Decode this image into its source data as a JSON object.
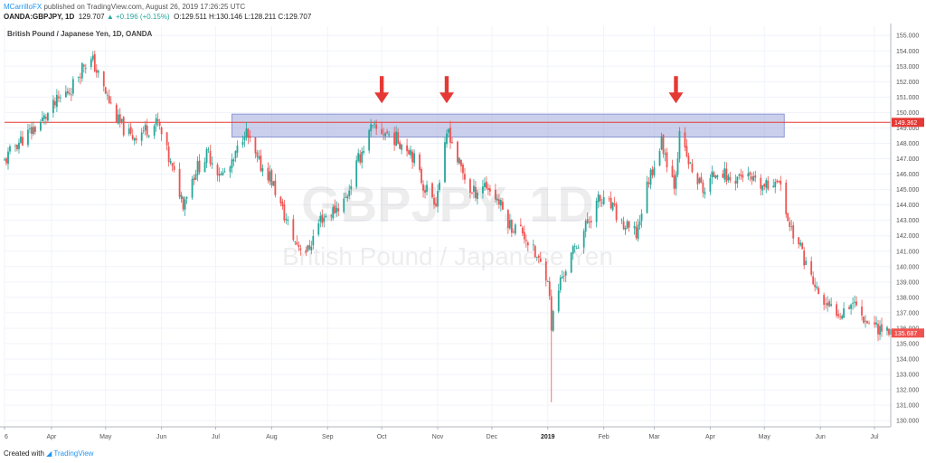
{
  "header": {
    "author": "MCarrilloFX",
    "published": "published on TradingView.com, August 26, 2019 17:26:25 UTC",
    "symbol": "OANDA:GBPJPY, 1D",
    "last": "129.707",
    "change": "+0.196 (+0.15%)",
    "ohlc": "O:129.511 H:130.146 L:128.211 C:129.707"
  },
  "footer": {
    "created_with": "Created with",
    "brand": "TradingView"
  },
  "chart_data": {
    "type": "candlestick",
    "title": "British Pound / Japanese Yen, 1D, OANDA",
    "watermark": "GBPJPY, 1D",
    "watermark_sub": "British Pound / Japanese Yen",
    "ylim": [
      129.6,
      155.6
    ],
    "y_ticks": [
      130,
      131,
      132,
      133,
      134,
      135,
      136,
      137,
      138,
      139,
      140,
      141,
      142,
      143,
      144,
      145,
      146,
      147,
      148,
      149,
      150,
      151,
      152,
      153,
      154,
      155
    ],
    "x_labels": [
      "6",
      "Apr",
      "May",
      "Jun",
      "Jul",
      "Aug",
      "Sep",
      "Oct",
      "Nov",
      "Dec",
      "2019",
      "Feb",
      "Mar",
      "Apr",
      "May",
      "Jun",
      "Jul"
    ],
    "x_label_dates": [
      "2018-03-06",
      "2018-04-01",
      "2018-05-01",
      "2018-06-01",
      "2018-07-01",
      "2018-08-01",
      "2018-09-01",
      "2018-10-01",
      "2018-11-01",
      "2018-12-01",
      "2019-01-01",
      "2019-02-01",
      "2019-03-01",
      "2019-04-01",
      "2019-05-01",
      "2019-06-01",
      "2019-07-01"
    ],
    "bold_x_labels": [
      "2019"
    ],
    "resistance_line": {
      "value": 149.362,
      "label": "149.362",
      "color": "#e53935"
    },
    "resistance_zone": {
      "low": 148.4,
      "high": 149.9,
      "start": "2018-07-10",
      "end": "2019-05-12",
      "color": "#9fa8da"
    },
    "markers": [
      {
        "date": "2018-10-01",
        "value": 150.6,
        "color": "#e53935"
      },
      {
        "date": "2018-11-06",
        "value": 150.6,
        "color": "#e53935"
      },
      {
        "date": "2019-03-13",
        "value": 150.6,
        "color": "#e53935"
      }
    ],
    "last_price": {
      "value": 135.687,
      "label": "135.687",
      "color": "#ef5350"
    },
    "up_color": "#26a69a",
    "down_color": "#ef5350",
    "axis_extent": {
      "start": "2018-03-06",
      "end": "2019-07-10"
    },
    "price_path": [
      [
        "2018-03-06",
        146.8
      ],
      [
        "2018-03-12",
        147.9
      ],
      [
        "2018-03-20",
        148.7
      ],
      [
        "2018-03-28",
        149.6
      ],
      [
        "2018-04-05",
        150.8
      ],
      [
        "2018-04-12",
        151.6
      ],
      [
        "2018-04-19",
        153.2
      ],
      [
        "2018-04-24",
        153.3
      ],
      [
        "2018-04-30",
        151.5
      ],
      [
        "2018-05-08",
        149.4
      ],
      [
        "2018-05-15",
        148.4
      ],
      [
        "2018-05-23",
        148.9
      ],
      [
        "2018-05-30",
        149.3
      ],
      [
        "2018-06-06",
        146.6
      ],
      [
        "2018-06-13",
        144.2
      ],
      [
        "2018-06-20",
        146.3
      ],
      [
        "2018-06-27",
        147.3
      ],
      [
        "2018-07-04",
        145.9
      ],
      [
        "2018-07-10",
        146.5
      ],
      [
        "2018-07-17",
        148.9
      ],
      [
        "2018-07-24",
        146.8
      ],
      [
        "2018-07-31",
        145.9
      ],
      [
        "2018-08-07",
        143.6
      ],
      [
        "2018-08-14",
        141.6
      ],
      [
        "2018-08-21",
        141.0
      ],
      [
        "2018-08-28",
        143.1
      ],
      [
        "2018-09-04",
        143.6
      ],
      [
        "2018-09-11",
        144.4
      ],
      [
        "2018-09-18",
        146.9
      ],
      [
        "2018-09-25",
        148.9
      ],
      [
        "2018-10-03",
        148.7
      ],
      [
        "2018-10-10",
        148.2
      ],
      [
        "2018-10-17",
        147.6
      ],
      [
        "2018-10-24",
        145.3
      ],
      [
        "2018-10-31",
        144.3
      ],
      [
        "2018-11-07",
        148.9
      ],
      [
        "2018-11-12",
        146.9
      ],
      [
        "2018-11-20",
        144.7
      ],
      [
        "2018-11-27",
        145.4
      ],
      [
        "2018-12-04",
        144.4
      ],
      [
        "2018-12-11",
        142.7
      ],
      [
        "2018-12-18",
        142.3
      ],
      [
        "2018-12-25",
        140.7
      ],
      [
        "2019-01-01",
        139.4
      ],
      [
        "2019-01-03",
        136.2
      ],
      [
        "2019-01-08",
        139.1
      ],
      [
        "2019-01-15",
        140.9
      ],
      [
        "2019-01-22",
        142.6
      ],
      [
        "2019-01-29",
        144.3
      ],
      [
        "2019-02-05",
        143.9
      ],
      [
        "2019-02-12",
        142.6
      ],
      [
        "2019-02-19",
        142.1
      ],
      [
        "2019-02-26",
        145.7
      ],
      [
        "2019-03-05",
        148.1
      ],
      [
        "2019-03-12",
        145.4
      ],
      [
        "2019-03-15",
        148.4
      ],
      [
        "2019-03-22",
        146.1
      ],
      [
        "2019-03-29",
        144.9
      ],
      [
        "2019-04-05",
        146.4
      ],
      [
        "2019-04-12",
        145.6
      ],
      [
        "2019-04-19",
        146.0
      ],
      [
        "2019-04-26",
        145.3
      ],
      [
        "2019-05-03",
        145.1
      ],
      [
        "2019-05-08",
        145.9
      ],
      [
        "2019-05-15",
        142.7
      ],
      [
        "2019-05-22",
        140.9
      ],
      [
        "2019-05-29",
        138.6
      ],
      [
        "2019-06-05",
        137.3
      ],
      [
        "2019-06-12",
        137.1
      ],
      [
        "2019-06-19",
        137.8
      ],
      [
        "2019-06-26",
        136.6
      ],
      [
        "2019-07-03",
        136.1
      ],
      [
        "2019-07-10",
        135.7
      ]
    ]
  }
}
